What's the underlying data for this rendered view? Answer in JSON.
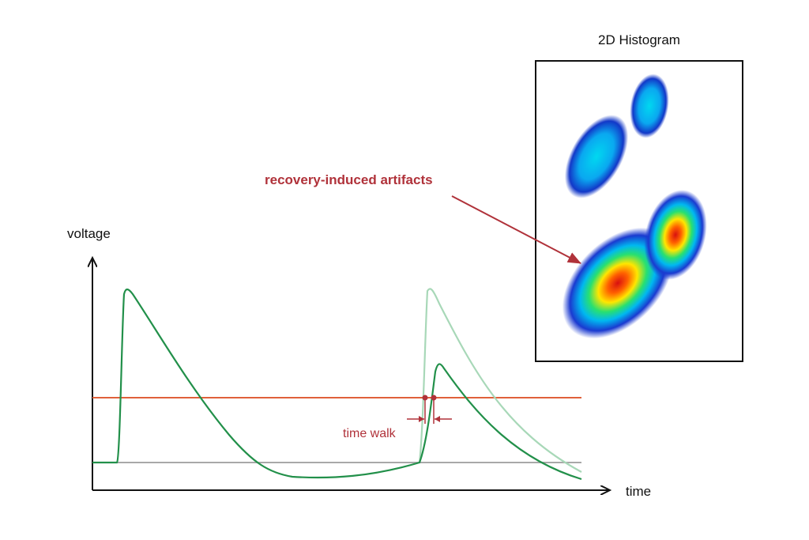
{
  "labels": {
    "y_axis": "voltage",
    "x_axis": "time",
    "histogram_title": "2D Histogram",
    "artifact_annotation": "recovery-induced artifacts",
    "time_walk": "time walk"
  },
  "colors": {
    "signal": "#22904a",
    "signal_faded": "#a8d8b8",
    "threshold": "#e0603a",
    "baseline": "#a8a8a8",
    "annotation": "#b0323a",
    "axis": "#111111"
  },
  "histogram_blobs": [
    {
      "name": "upper-left-cluster",
      "peak_level": 0.35
    },
    {
      "name": "upper-right-cluster",
      "peak_level": 0.35
    },
    {
      "name": "lower-left-cluster",
      "peak_level": 1.0
    },
    {
      "name": "lower-right-cluster",
      "peak_level": 0.95
    }
  ]
}
